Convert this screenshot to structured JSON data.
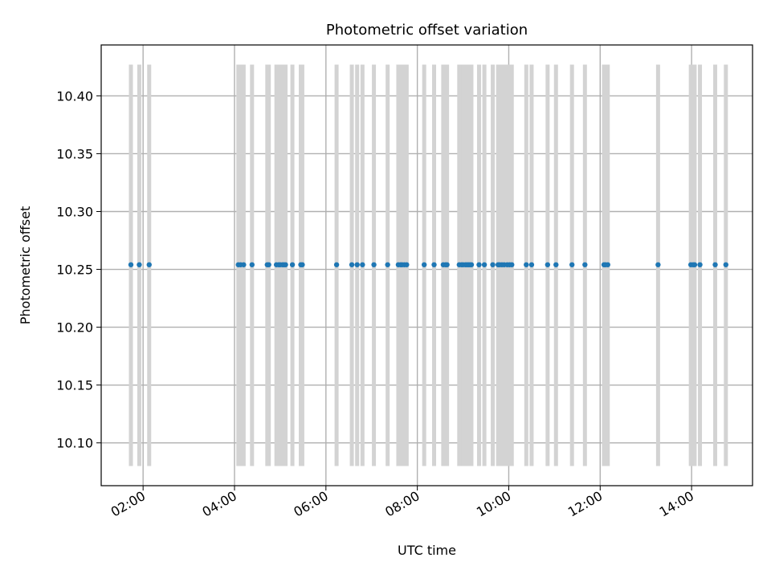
{
  "chart_data": {
    "type": "scatter",
    "title": "Photometric offset variation",
    "xlabel": "UTC time",
    "ylabel": "Photometric offset",
    "x_axis_type": "time",
    "xlim": [
      "01:05",
      "15:20"
    ],
    "ylim": [
      10.063,
      10.444
    ],
    "xticks": [
      "02:00",
      "04:00",
      "06:00",
      "08:00",
      "10:00",
      "12:00",
      "14:00"
    ],
    "yticks": [
      10.1,
      10.15,
      10.2,
      10.25,
      10.3,
      10.35,
      10.4
    ],
    "grid": true,
    "point_color": "#1f77b4",
    "errorbar_color": "#d3d3d3",
    "errorbar_low": 10.08,
    "errorbar_high": 10.427,
    "series": [
      {
        "x": [
          "01:44",
          "01:55",
          "02:08",
          "04:05",
          "04:08",
          "04:12",
          "04:23",
          "04:43",
          "04:45",
          "04:55",
          "04:58",
          "05:00",
          "05:03",
          "05:05",
          "05:07",
          "05:16",
          "05:27",
          "05:29",
          "06:14",
          "06:34",
          "06:41",
          "06:48",
          "07:03",
          "07:21",
          "07:35",
          "07:38",
          "07:40",
          "07:43",
          "07:46",
          "08:09",
          "08:22",
          "08:34",
          "08:37",
          "08:39",
          "08:55",
          "08:58",
          "09:00",
          "09:03",
          "09:05",
          "09:07",
          "09:09",
          "09:11",
          "09:21",
          "09:28",
          "09:39",
          "09:46",
          "09:48",
          "09:51",
          "09:54",
          "09:58",
          "10:01",
          "10:04",
          "10:23",
          "10:30",
          "10:51",
          "11:02",
          "11:23",
          "11:40",
          "12:05",
          "12:07",
          "12:10",
          "13:16",
          "13:59",
          "14:02",
          "14:04",
          "14:11",
          "14:31",
          "14:45"
        ],
        "y_constant": 10.254
      }
    ]
  }
}
